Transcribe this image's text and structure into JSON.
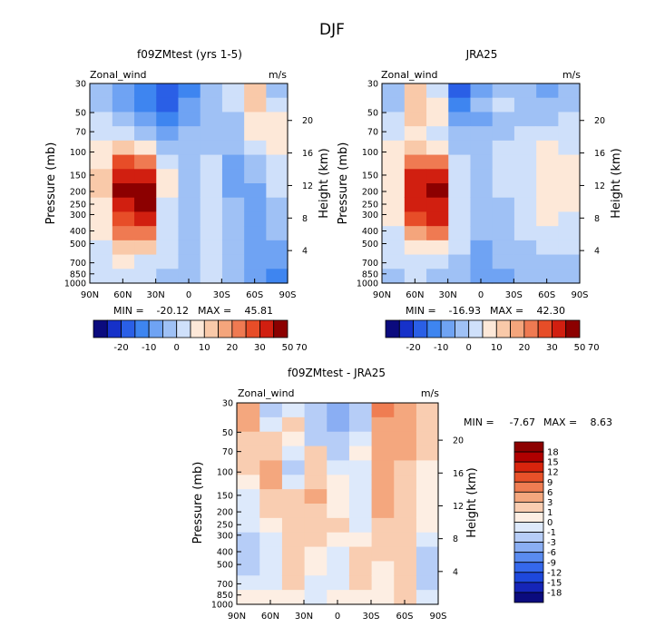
{
  "title": "DJF",
  "chart_data": [
    {
      "type": "heatmap",
      "title": "f09ZMtest (yrs 1-5)",
      "field_label": "Zonal_wind",
      "units": "m/s",
      "ylabel": "Pressure (mb)",
      "ylabel_right": "Height (km)",
      "x_ticks": [
        "90N",
        "60N",
        "30N",
        "0",
        "30S",
        "60S",
        "90S"
      ],
      "y_ticks": [
        "30",
        "50",
        "70",
        "100",
        "150",
        "200",
        "250",
        "300",
        "400",
        "500",
        "700",
        "850",
        "1000"
      ],
      "y2_ticks": [
        "20",
        "16",
        "12",
        "8",
        "4"
      ],
      "stats": {
        "min_label": "MIN =",
        "min": "-20.12",
        "max_label": "MAX =",
        "max": "45.81"
      },
      "levels": [
        "-20",
        "-10",
        "0",
        "10",
        "20",
        "30",
        "50",
        "70"
      ],
      "cell_values": [
        [
          -3,
          13,
          3,
          -5,
          -12,
          -18,
          -15,
          -8,
          -2
        ],
        [
          3,
          11,
          1,
          -4,
          -10,
          -16,
          -12,
          -6,
          -1
        ],
        [
          6,
          8,
          -1,
          -3,
          -7,
          -13,
          -8,
          -3,
          1
        ],
        [
          7,
          5,
          -3,
          -2,
          -4,
          -9,
          -3,
          1,
          4
        ],
        [
          5,
          1,
          -5,
          -1,
          -2,
          -3,
          6,
          13,
          5
        ],
        [
          2,
          -2,
          -6,
          0,
          -1,
          2,
          20,
          27,
          8
        ],
        [
          1,
          -4,
          -7,
          0,
          -1,
          5,
          38,
          34,
          10
        ],
        [
          0,
          -6,
          -6,
          2,
          -1,
          6,
          43,
          40,
          11
        ],
        [
          -1,
          -7,
          -5,
          3,
          -2,
          4,
          40,
          36,
          9
        ],
        [
          -3,
          -9,
          -4,
          3,
          -3,
          3,
          32,
          28,
          7
        ],
        [
          -5,
          -10,
          -4,
          2,
          -3,
          2,
          22,
          20,
          5
        ],
        [
          -8,
          -10,
          -4,
          1,
          -4,
          1,
          10,
          12,
          3
        ],
        [
          -10,
          -10,
          -4,
          0,
          -4,
          0,
          4,
          7,
          1
        ],
        [
          -11,
          -10,
          -4,
          0,
          -4,
          -1,
          0,
          3,
          0
        ]
      ],
      "cell_layout": "rows top (30 mb) to bottom (1000 mb), columns 90S to 90N (plotted 90N left)"
    },
    {
      "type": "heatmap",
      "title": "JRA25",
      "field_label": "Zonal_wind",
      "units": "m/s",
      "ylabel": "Pressure (mb)",
      "ylabel_right": "Height (km)",
      "x_ticks": [
        "90N",
        "60N",
        "30N",
        "0",
        "30S",
        "60S",
        "90S"
      ],
      "y_ticks": [
        "30",
        "50",
        "70",
        "100",
        "150",
        "200",
        "250",
        "300",
        "400",
        "500",
        "700",
        "850",
        "1000"
      ],
      "y2_ticks": [
        "20",
        "16",
        "12",
        "8",
        "4"
      ],
      "stats": {
        "min_label": "MIN =",
        "min": "-16.93",
        "max_label": "MAX =",
        "max": "42.30"
      },
      "levels": [
        "-20",
        "-10",
        "0",
        "10",
        "20",
        "30",
        "50",
        "70"
      ],
      "cell_values": [
        [
          -4,
          -6,
          -3,
          -2,
          -8,
          -16,
          4,
          12,
          -5
        ],
        [
          -2,
          -4,
          -3,
          0,
          -4,
          -12,
          8,
          14,
          -2
        ],
        [
          0,
          -1,
          -1,
          -2,
          -6,
          -8,
          6,
          10,
          1
        ],
        [
          2,
          3,
          3,
          -1,
          -5,
          -5,
          2,
          5,
          3
        ],
        [
          4,
          6,
          4,
          0,
          -2,
          -4,
          8,
          12,
          5
        ],
        [
          5,
          8,
          4,
          1,
          -2,
          0,
          20,
          22,
          7
        ],
        [
          6,
          8,
          3,
          0,
          -1,
          3,
          33,
          30,
          8
        ],
        [
          6,
          9,
          2,
          0,
          -1,
          4,
          40,
          37,
          9
        ],
        [
          5,
          8,
          2,
          -1,
          -2,
          3,
          38,
          34,
          8
        ],
        [
          4,
          6,
          1,
          -2,
          -3,
          2,
          30,
          26,
          6
        ],
        [
          3,
          4,
          0,
          -4,
          -4,
          1,
          20,
          17,
          4
        ],
        [
          1,
          1,
          -1,
          -5,
          -6,
          0,
          9,
          9,
          2
        ],
        [
          -1,
          -2,
          -2,
          -5,
          -8,
          -1,
          2,
          4,
          0
        ],
        [
          -2,
          -4,
          -3,
          -6,
          -8,
          -2,
          -2,
          1,
          -1
        ]
      ],
      "cell_layout": "rows top (30 mb) to bottom (1000 mb), columns 90S to 90N (plotted 90N left)"
    },
    {
      "type": "heatmap",
      "title": "f09ZMtest - JRA25",
      "field_label": "Zonal_wind",
      "units": "m/s",
      "ylabel": "Pressure (mb)",
      "ylabel_right": "Height (km)",
      "x_ticks": [
        "90N",
        "60N",
        "30N",
        "0",
        "30S",
        "60S",
        "90S"
      ],
      "y_ticks": [
        "30",
        "50",
        "70",
        "100",
        "150",
        "200",
        "250",
        "300",
        "400",
        "500",
        "700",
        "850",
        "1000"
      ],
      "y2_ticks": [
        "20",
        "16",
        "12",
        "8",
        "4"
      ],
      "stats": {
        "min_label": "MIN =",
        "min": "-7.67",
        "max_label": "MAX =",
        "max": "8.63"
      },
      "levels": [
        "18",
        "15",
        "12",
        "9",
        "6",
        "3",
        "1",
        "0",
        "-1",
        "-3",
        "-6",
        "-9",
        "-12",
        "-15",
        "-18"
      ],
      "cell_values": [
        [
          1,
          5,
          6,
          -3,
          -4,
          -2,
          -1,
          -2,
          4
        ],
        [
          2,
          4,
          5,
          -2,
          -5,
          -3,
          1,
          -1,
          3
        ],
        [
          2,
          3,
          4,
          -1,
          -3,
          -2,
          0,
          1,
          2
        ],
        [
          1,
          3,
          4,
          0,
          -2,
          1,
          -1,
          2,
          1
        ],
        [
          0,
          2,
          4,
          -1,
          -1,
          2,
          -2,
          3,
          1
        ],
        [
          0,
          2,
          4,
          -1,
          0,
          2,
          -1,
          3,
          0
        ],
        [
          0,
          1,
          3,
          -1,
          0,
          3,
          1,
          2,
          -1
        ],
        [
          0,
          1,
          3,
          -1,
          0,
          2,
          2,
          1,
          -1
        ],
        [
          0,
          1,
          2,
          -1,
          1,
          1,
          2,
          0,
          -1
        ],
        [
          -1,
          2,
          2,
          0,
          0,
          1,
          2,
          -1,
          -2
        ],
        [
          -2,
          2,
          1,
          1,
          -1,
          0,
          2,
          -1,
          -2
        ],
        [
          -3,
          1,
          0,
          1,
          -1,
          0,
          1,
          -1,
          -2
        ],
        [
          -2,
          1,
          0,
          1,
          -1,
          -1,
          1,
          -1,
          -1
        ],
        [
          -1,
          1,
          0,
          0,
          0,
          -1,
          0,
          0,
          0
        ]
      ],
      "cell_layout": "rows top (30 mb) to bottom (1000 mb), columns 90S to 90N (plotted 90N left)"
    }
  ],
  "colors": {
    "abs_scale": [
      "#0b0b7e",
      "#1631c9",
      "#2a5fe6",
      "#3e85f0",
      "#6fa3f3",
      "#9fc1f5",
      "#cfe0fa",
      "#fde8d8",
      "#f9c9a9",
      "#f4a57c",
      "#ef7a52",
      "#e74d28",
      "#d11f10",
      "#8c0000"
    ],
    "diff_scale": [
      "#0b0b7e",
      "#1525b8",
      "#1e48dc",
      "#3568ec",
      "#5a8bf0",
      "#8aaef3",
      "#b6cdf7",
      "#dde9fb",
      "#fdeee3",
      "#f9cdb1",
      "#f4a77e",
      "#ef7d52",
      "#e85129",
      "#d8240d",
      "#b00000",
      "#8c0000"
    ]
  }
}
